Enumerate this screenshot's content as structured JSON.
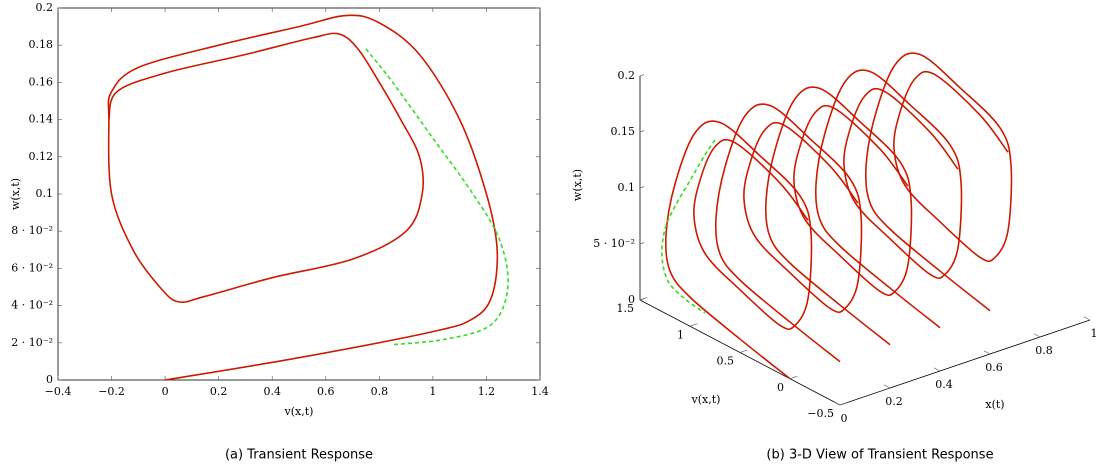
{
  "chart_data": [
    {
      "type": "line",
      "caption": "(a) Transient Response",
      "xlabel": "v(x,t)",
      "ylabel": "w(x,t)",
      "xlim": [
        -0.4,
        1.4
      ],
      "ylim": [
        0,
        0.2
      ],
      "xticks": [
        {
          "value": -0.4,
          "label": "−0.4"
        },
        {
          "value": -0.2,
          "label": "−0.2"
        },
        0,
        0.2,
        0.4,
        0.6,
        0.8,
        1,
        1.2,
        1.4
      ],
      "yticks": [
        0,
        {
          "value": 0.02,
          "label": "2 · 10⁻²"
        },
        {
          "value": 0.04,
          "label": "4 · 10⁻²"
        },
        {
          "value": 0.06,
          "label": "6 · 10⁻²"
        },
        {
          "value": 0.08,
          "label": "8 · 10⁻²"
        },
        0.1,
        0.12,
        0.14,
        0.16,
        0.18,
        0.2
      ],
      "series": [
        {
          "color": "#cc1a00",
          "dash": false,
          "x": [
            0,
            0.5,
            1.0,
            1.15,
            1.22,
            1.24,
            1.2,
            1.1,
            0.95,
            0.8,
            0.68,
            0.5,
            0.2,
            -0.1,
            -0.2,
            -0.21,
            -0.2,
            -0.12,
            -0.02,
            0.05,
            0.15,
            0.4,
            0.7,
            0.9,
            0.96,
            0.95,
            0.88,
            0.8,
            0.72,
            0.65,
            0.55,
            0.3,
            0,
            -0.18,
            -0.21
          ],
          "values": [
            0,
            0.012,
            0.026,
            0.033,
            0.045,
            0.07,
            0.1,
            0.14,
            0.175,
            0.192,
            0.196,
            0.19,
            0.18,
            0.168,
            0.155,
            0.14,
            0.1,
            0.07,
            0.05,
            0.042,
            0.045,
            0.055,
            0.065,
            0.08,
            0.1,
            0.12,
            0.14,
            0.16,
            0.178,
            0.186,
            0.184,
            0.175,
            0.165,
            0.155,
            0.14
          ]
        },
        {
          "color": "#33dd22",
          "dash": true,
          "x": [
            0.75,
            0.85,
            1.0,
            1.15,
            1.25,
            1.28,
            1.22,
            1.05,
            0.85
          ],
          "values": [
            0.178,
            0.16,
            0.13,
            0.1,
            0.075,
            0.05,
            0.03,
            0.022,
            0.019
          ]
        }
      ]
    },
    {
      "type": "line3d",
      "caption": "(b) 3-D View of Transient Response",
      "xlabel": "x(t)",
      "ylabel": "v(x,t)",
      "zlabel": "w(x,t)",
      "xlim": [
        0,
        1
      ],
      "ylim": [
        -0.5,
        1.5
      ],
      "zlim": [
        0,
        0.2
      ],
      "xticks": [
        0,
        0.2,
        0.4,
        0.6,
        0.8,
        1
      ],
      "yticks": [
        {
          "value": -0.5,
          "label": "−0.5"
        },
        0,
        0.5,
        1,
        1.5
      ],
      "zticks": [
        0,
        {
          "value": 0.05,
          "label": "5 · 10⁻²"
        },
        0.1,
        0.15,
        0.2
      ],
      "series": [
        {
          "color": "#cc1a00",
          "dash": false,
          "x": 0,
          "y": [
            0,
            0.5,
            1.0,
            1.2,
            1.24,
            1.15,
            0.95,
            0.7,
            0.3,
            -0.1,
            -0.21,
            -0.18,
            -0.05,
            0.1,
            0.5,
            0.85,
            0.96,
            0.9,
            0.75,
            0.55,
            0.1,
            -0.18
          ],
          "z": [
            0,
            0.012,
            0.026,
            0.04,
            0.07,
            0.12,
            0.175,
            0.196,
            0.185,
            0.168,
            0.14,
            0.08,
            0.05,
            0.043,
            0.056,
            0.072,
            0.1,
            0.135,
            0.172,
            0.185,
            0.17,
            0.15
          ]
        },
        {
          "color": "#cc1a00",
          "dash": false,
          "x": 0.2,
          "y": [
            0,
            0.5,
            1.0,
            1.2,
            1.24,
            1.15,
            0.95,
            0.7,
            0.3,
            -0.1,
            -0.21,
            -0.18,
            -0.05,
            0.1,
            0.5,
            0.85,
            0.96,
            0.9,
            0.75,
            0.55,
            0.1,
            -0.18
          ],
          "z": [
            0,
            0.012,
            0.026,
            0.04,
            0.07,
            0.12,
            0.175,
            0.196,
            0.185,
            0.168,
            0.14,
            0.08,
            0.05,
            0.043,
            0.056,
            0.072,
            0.1,
            0.135,
            0.172,
            0.185,
            0.17,
            0.15
          ]
        },
        {
          "color": "#cc1a00",
          "dash": false,
          "x": 0.4,
          "y": [
            0,
            0.5,
            1.0,
            1.2,
            1.24,
            1.15,
            0.95,
            0.7,
            0.3,
            -0.1,
            -0.21,
            -0.18,
            -0.05,
            0.1,
            0.5,
            0.85,
            0.96,
            0.9,
            0.75,
            0.55,
            0.1,
            -0.18
          ],
          "z": [
            0,
            0.012,
            0.026,
            0.04,
            0.07,
            0.12,
            0.175,
            0.196,
            0.185,
            0.168,
            0.14,
            0.08,
            0.05,
            0.043,
            0.056,
            0.072,
            0.1,
            0.135,
            0.172,
            0.185,
            0.17,
            0.15
          ]
        },
        {
          "color": "#cc1a00",
          "dash": false,
          "x": 0.6,
          "y": [
            0,
            0.5,
            1.0,
            1.2,
            1.24,
            1.15,
            0.95,
            0.7,
            0.3,
            -0.1,
            -0.21,
            -0.18,
            -0.05,
            0.1,
            0.5,
            0.85,
            0.96,
            0.9,
            0.75,
            0.55,
            0.1,
            -0.18
          ],
          "z": [
            0,
            0.012,
            0.026,
            0.04,
            0.07,
            0.12,
            0.175,
            0.196,
            0.185,
            0.168,
            0.14,
            0.08,
            0.05,
            0.043,
            0.056,
            0.072,
            0.1,
            0.135,
            0.172,
            0.185,
            0.17,
            0.15
          ]
        },
        {
          "color": "#cc1a00",
          "dash": false,
          "x": 0.8,
          "y": [
            0,
            0.5,
            1.0,
            1.2,
            1.24,
            1.15,
            0.95,
            0.7,
            0.3,
            -0.1,
            -0.21,
            -0.18,
            -0.05,
            0.1,
            0.5,
            0.85,
            0.96,
            0.9,
            0.75,
            0.55,
            0.1,
            -0.18
          ],
          "z": [
            0,
            0.012,
            0.026,
            0.04,
            0.07,
            0.12,
            0.175,
            0.196,
            0.185,
            0.168,
            0.14,
            0.08,
            0.05,
            0.043,
            0.056,
            0.072,
            0.1,
            0.135,
            0.172,
            0.185,
            0.17,
            0.15
          ]
        },
        {
          "color": "#33dd22",
          "dash": true,
          "x": 0,
          "y": [
            0.75,
            0.85,
            1.0,
            1.15,
            1.25,
            1.28,
            1.22,
            1.05,
            0.85
          ],
          "z": [
            0.178,
            0.16,
            0.13,
            0.1,
            0.075,
            0.05,
            0.03,
            0.022,
            0.019
          ]
        }
      ]
    }
  ]
}
